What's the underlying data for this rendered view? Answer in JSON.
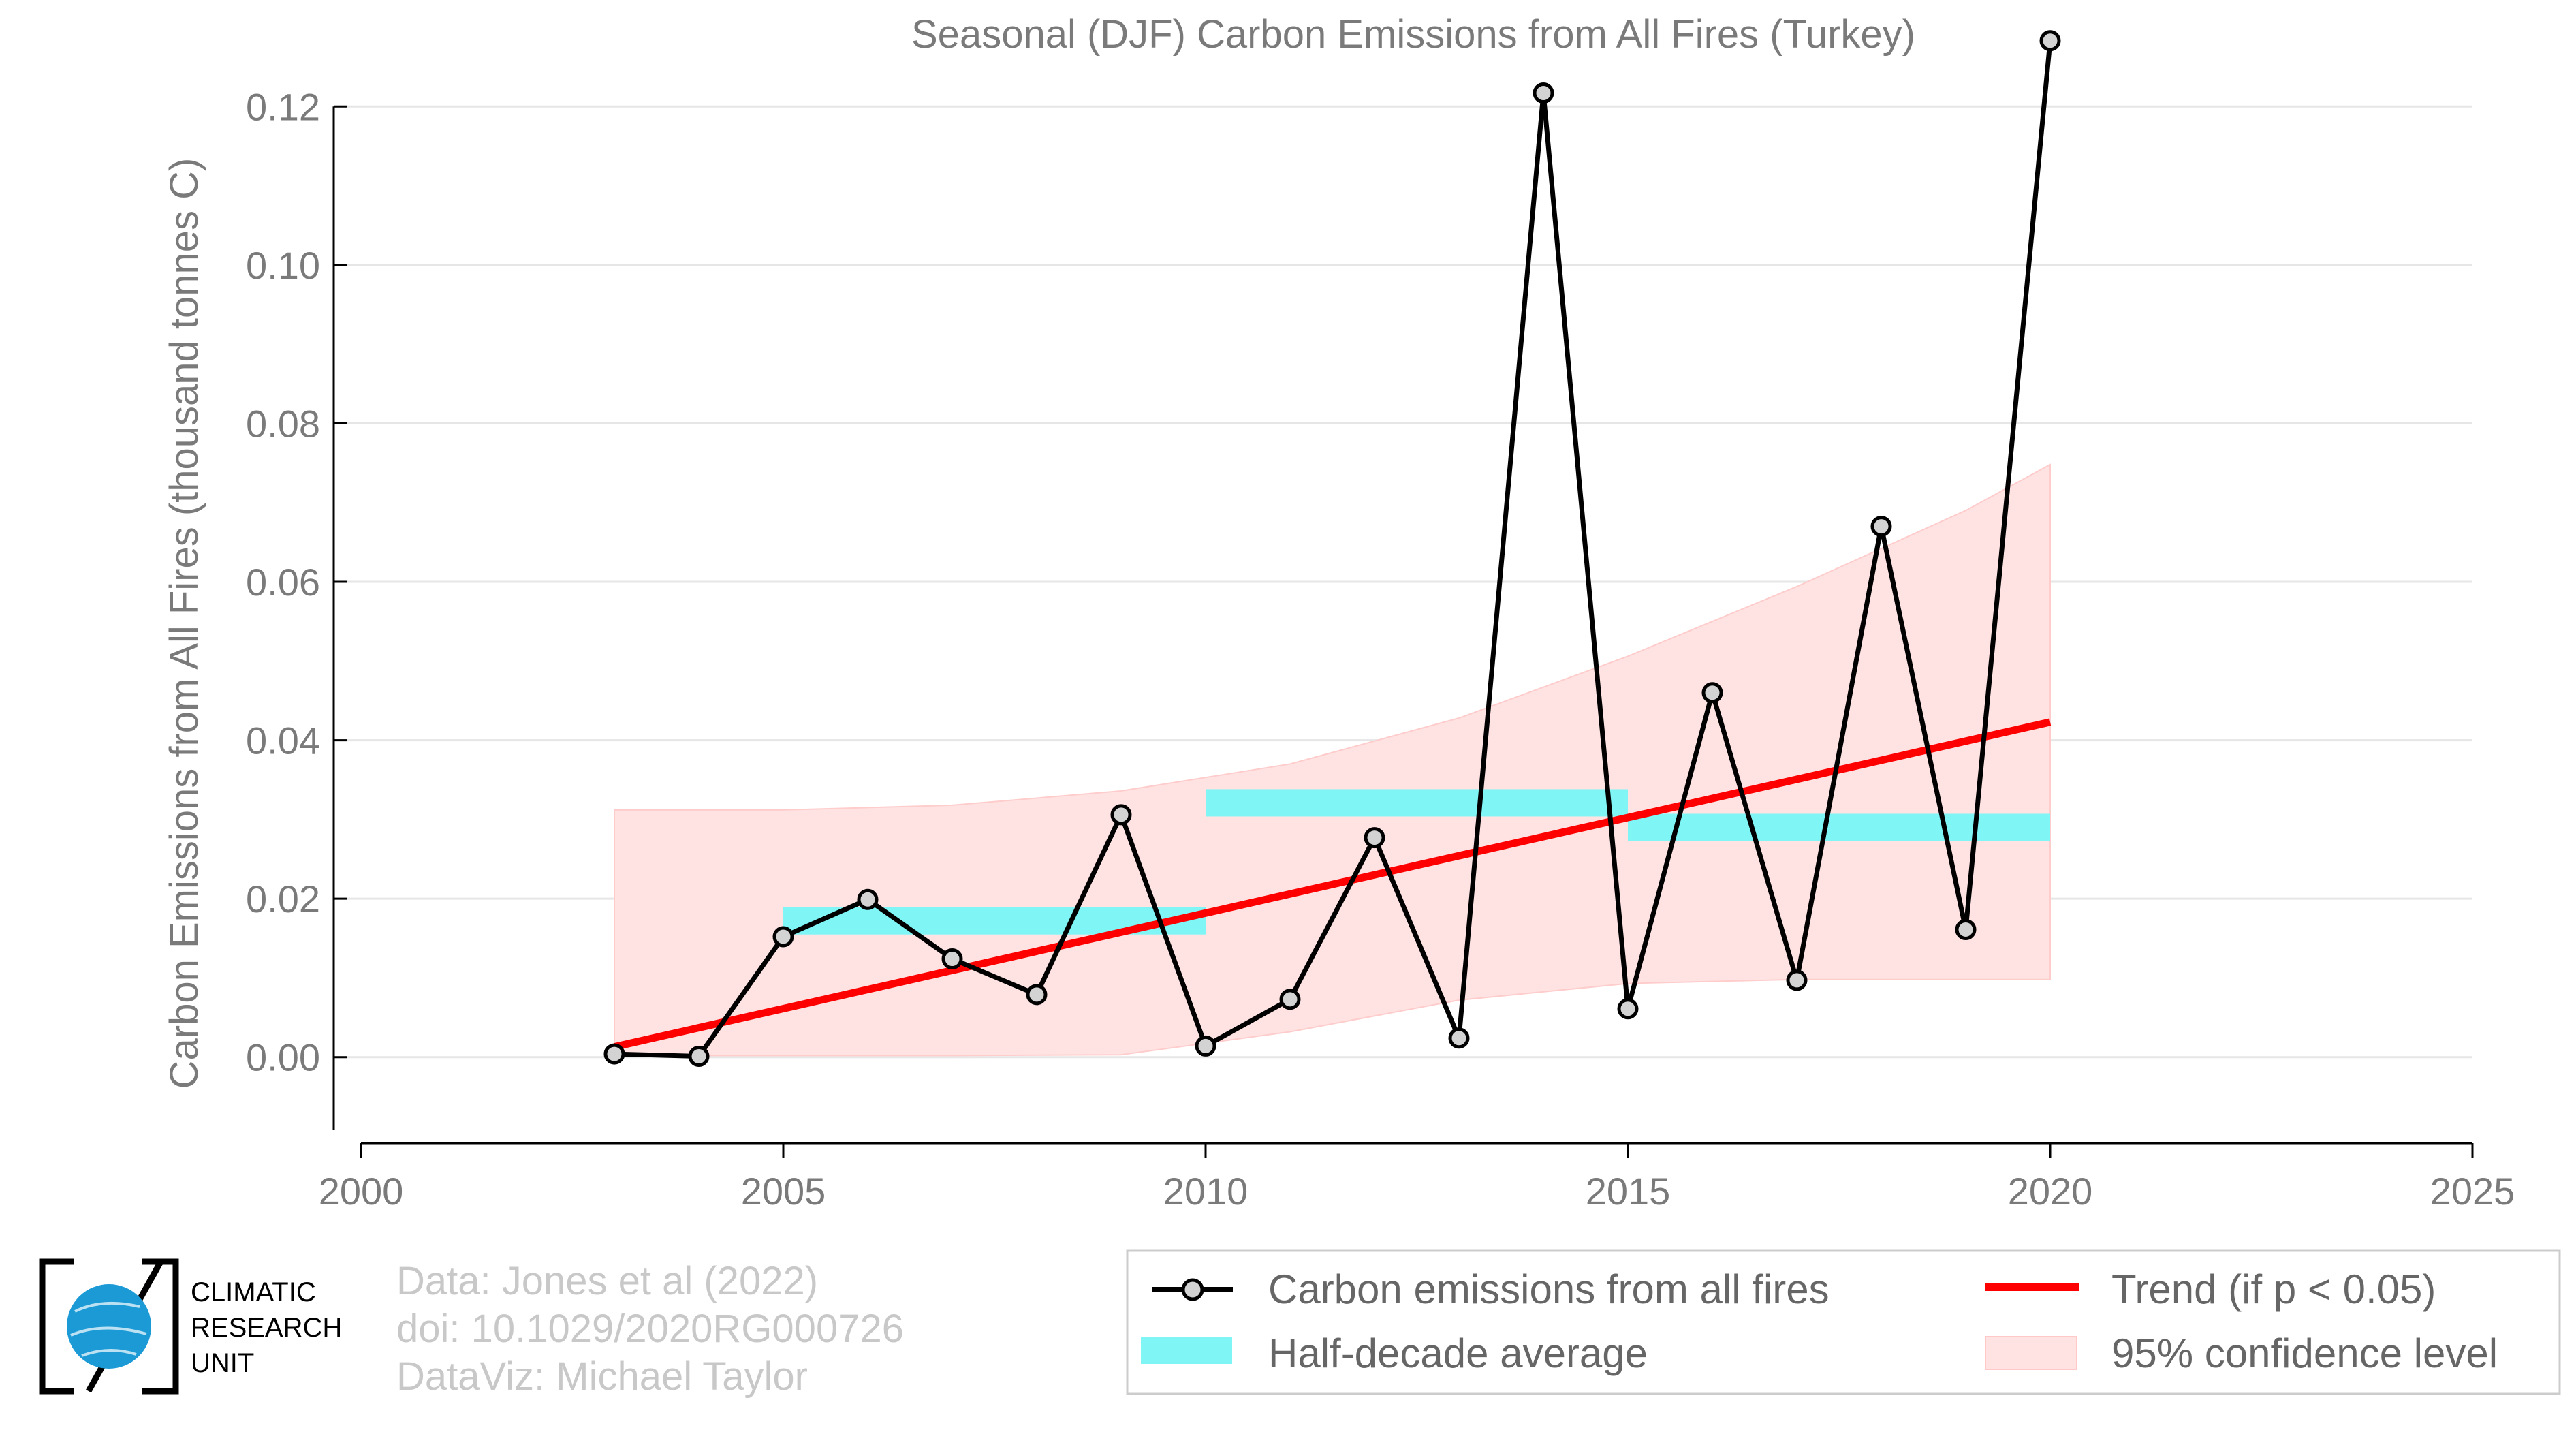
{
  "chart_data": {
    "type": "line",
    "title": "Seasonal (DJF) Carbon Emissions from All Fires (Turkey)",
    "ylabel": "Carbon Emissions from All Fires (thousand tonnes C)",
    "xlabel": "",
    "xlim": [
      2000,
      2025
    ],
    "ylim": [
      -0.01,
      0.13
    ],
    "x_ticks": [
      "2000",
      "2005",
      "2010",
      "2015",
      "2020",
      "2025"
    ],
    "y_ticks": [
      "0.00",
      "0.02",
      "0.04",
      "0.06",
      "0.08",
      "0.10",
      "0.12"
    ],
    "grid": "horizontal",
    "series": [
      {
        "name": "Carbon emissions from all fires",
        "color": "#000000",
        "x": [
          2003,
          2004,
          2005,
          2006,
          2007,
          2008,
          2009,
          2010,
          2011,
          2012,
          2013,
          2014,
          2015,
          2016,
          2017,
          2018,
          2019,
          2020
        ],
        "values": [
          0.0004,
          0.0001,
          0.0152,
          0.0199,
          0.0124,
          0.0079,
          0.0306,
          0.0014,
          0.0073,
          0.0277,
          0.0024,
          0.1217,
          0.0061,
          0.046,
          0.0097,
          0.067,
          0.0161,
          0.1283
        ]
      }
    ],
    "half_decade_average": {
      "name": "Half-decade average",
      "color": "#7ff5f5",
      "segments": [
        {
          "x0": 2005,
          "x1": 2010,
          "y": 0.0172
        },
        {
          "x0": 2010,
          "x1": 2015,
          "y": 0.0321
        },
        {
          "x0": 2015,
          "x1": 2020,
          "y": 0.029
        }
      ]
    },
    "trend": {
      "name": "Trend (if p < 0.05)",
      "color": "#ff0000",
      "x0": 2003,
      "y0": 0.0013,
      "x1": 2020,
      "y1": 0.0423
    },
    "confidence_band": {
      "name": "95% confidence level",
      "color": "#ffe3e3",
      "x": [
        2003,
        2005,
        2007,
        2009,
        2011,
        2013,
        2015,
        2017,
        2019,
        2020
      ],
      "upper": [
        0.0312,
        0.0312,
        0.0318,
        0.0336,
        0.037,
        0.0428,
        0.0506,
        0.0594,
        0.069,
        0.0748
      ],
      "lower": [
        0.0002,
        0.0002,
        0.0002,
        0.0003,
        0.0032,
        0.0072,
        0.0093,
        0.0098,
        0.0098,
        0.0098
      ]
    },
    "legend_position": "bottom-right"
  },
  "credits": {
    "line1": "Data: Jones et al (2022)",
    "line2": "doi: 10.1029/2020RG000726",
    "line3": "DataViz: Michael Taylor"
  },
  "logo": {
    "line1": "CLIMATIC",
    "line2": "RESEARCH",
    "line3": "UNIT"
  }
}
